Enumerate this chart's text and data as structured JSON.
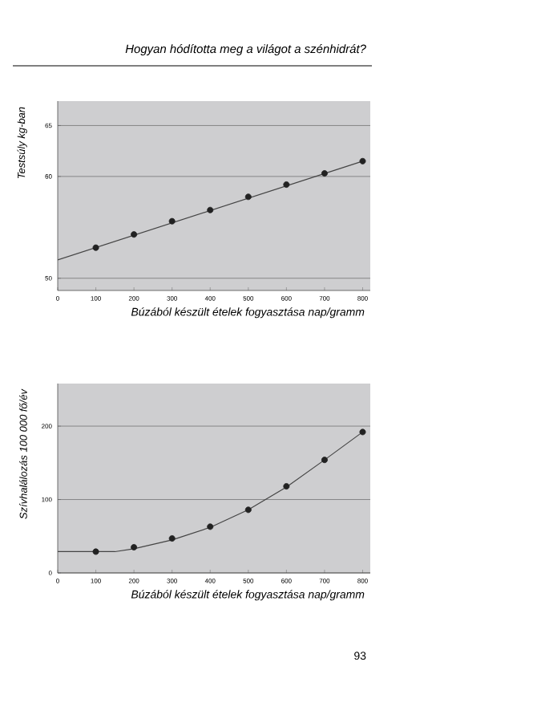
{
  "chart_data": [
    {
      "type": "scatter",
      "ylabel": "Testsúly kg-ban",
      "xlabel": "Búzából készült ételek fogyasztása nap/gramm",
      "annotations": [
        "Hogyan hódította meg a világot a szénhidrát?"
      ],
      "x": [
        100,
        200,
        300,
        400,
        500,
        600,
        700,
        800
      ],
      "series": [
        {
          "color": "#222222",
          "values": [
            53.0,
            54.3,
            55.6,
            56.7,
            58.0,
            59.2,
            60.3,
            61.5
          ]
        },
        {
          "type": "line",
          "color": "#444444",
          "x": [
            0,
            800
          ],
          "values": [
            51.8,
            61.5
          ],
          "marker": "none"
        }
      ],
      "xlim": [
        0,
        820
      ],
      "ylim": [
        48.8,
        67.4
      ],
      "xticks": [
        0,
        100,
        200,
        300,
        400,
        500,
        600,
        700,
        800
      ],
      "yticks": [
        50,
        60,
        65
      ],
      "grid": "y",
      "marker": "circle"
    },
    {
      "type": "scatter",
      "ylabel": "Szívhalálozás 100 000 fő/év",
      "xlabel": "Búzából készült ételek fogyasztása nap/gramm",
      "annotations": [
        "93"
      ],
      "x": [
        100,
        200,
        300,
        400,
        500,
        600,
        700,
        800
      ],
      "series": [
        {
          "color": "#222222",
          "values": [
            29,
            35,
            47,
            63,
            86,
            118,
            154,
            192
          ]
        },
        {
          "type": "line",
          "color": "#444444",
          "x": [
            0,
            150,
            200,
            300,
            400,
            500,
            600,
            700,
            800
          ],
          "values": [
            29,
            29,
            33,
            45,
            62,
            86,
            117,
            154,
            192
          ],
          "marker": "none"
        }
      ],
      "xlim": [
        0,
        820
      ],
      "ylim": [
        0,
        258
      ],
      "xticks": [
        0,
        100,
        200,
        300,
        400,
        500,
        600,
        700,
        800
      ],
      "yticks": [
        0,
        100,
        200
      ],
      "grid": "y",
      "marker": "circle"
    }
  ]
}
